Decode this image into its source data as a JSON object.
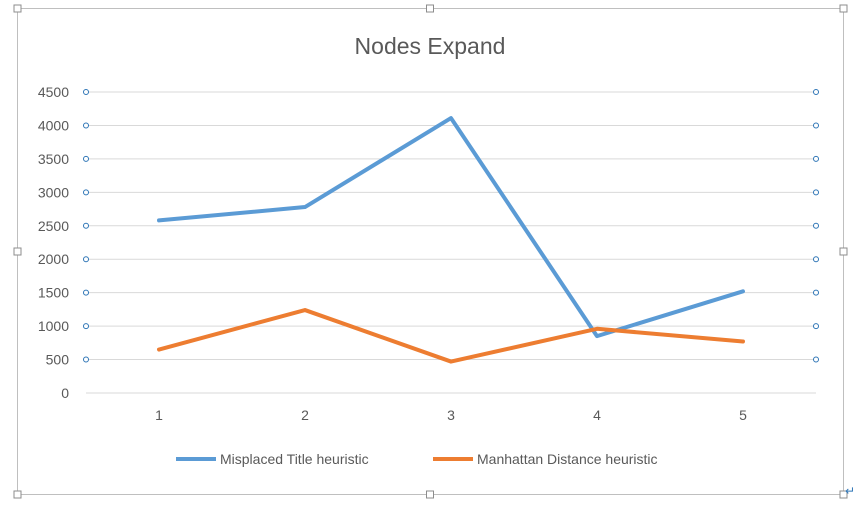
{
  "chart_data": {
    "type": "line",
    "title": "Nodes Expand",
    "categories": [
      "1",
      "2",
      "3",
      "4",
      "5"
    ],
    "series": [
      {
        "name": "Misplaced Title heuristic",
        "values": [
          2580,
          2780,
          4110,
          850,
          1520
        ],
        "color": "#5B9BD5"
      },
      {
        "name": "Manhattan Distance heuristic",
        "values": [
          650,
          1240,
          470,
          960,
          770
        ],
        "color": "#ED7D31"
      }
    ],
    "ylim": [
      0,
      4500
    ],
    "yticks": [
      0,
      500,
      1000,
      1500,
      2000,
      2500,
      3000,
      3500,
      4000,
      4500
    ],
    "xlabel": "",
    "ylabel": "",
    "grid": true,
    "legend": "bottom"
  },
  "colors": {
    "text": "#595959",
    "grid": "#D9D9D9",
    "frame": "#BFBFBF",
    "handle": "#8C8C8C",
    "marker": "#2E75B6"
  }
}
